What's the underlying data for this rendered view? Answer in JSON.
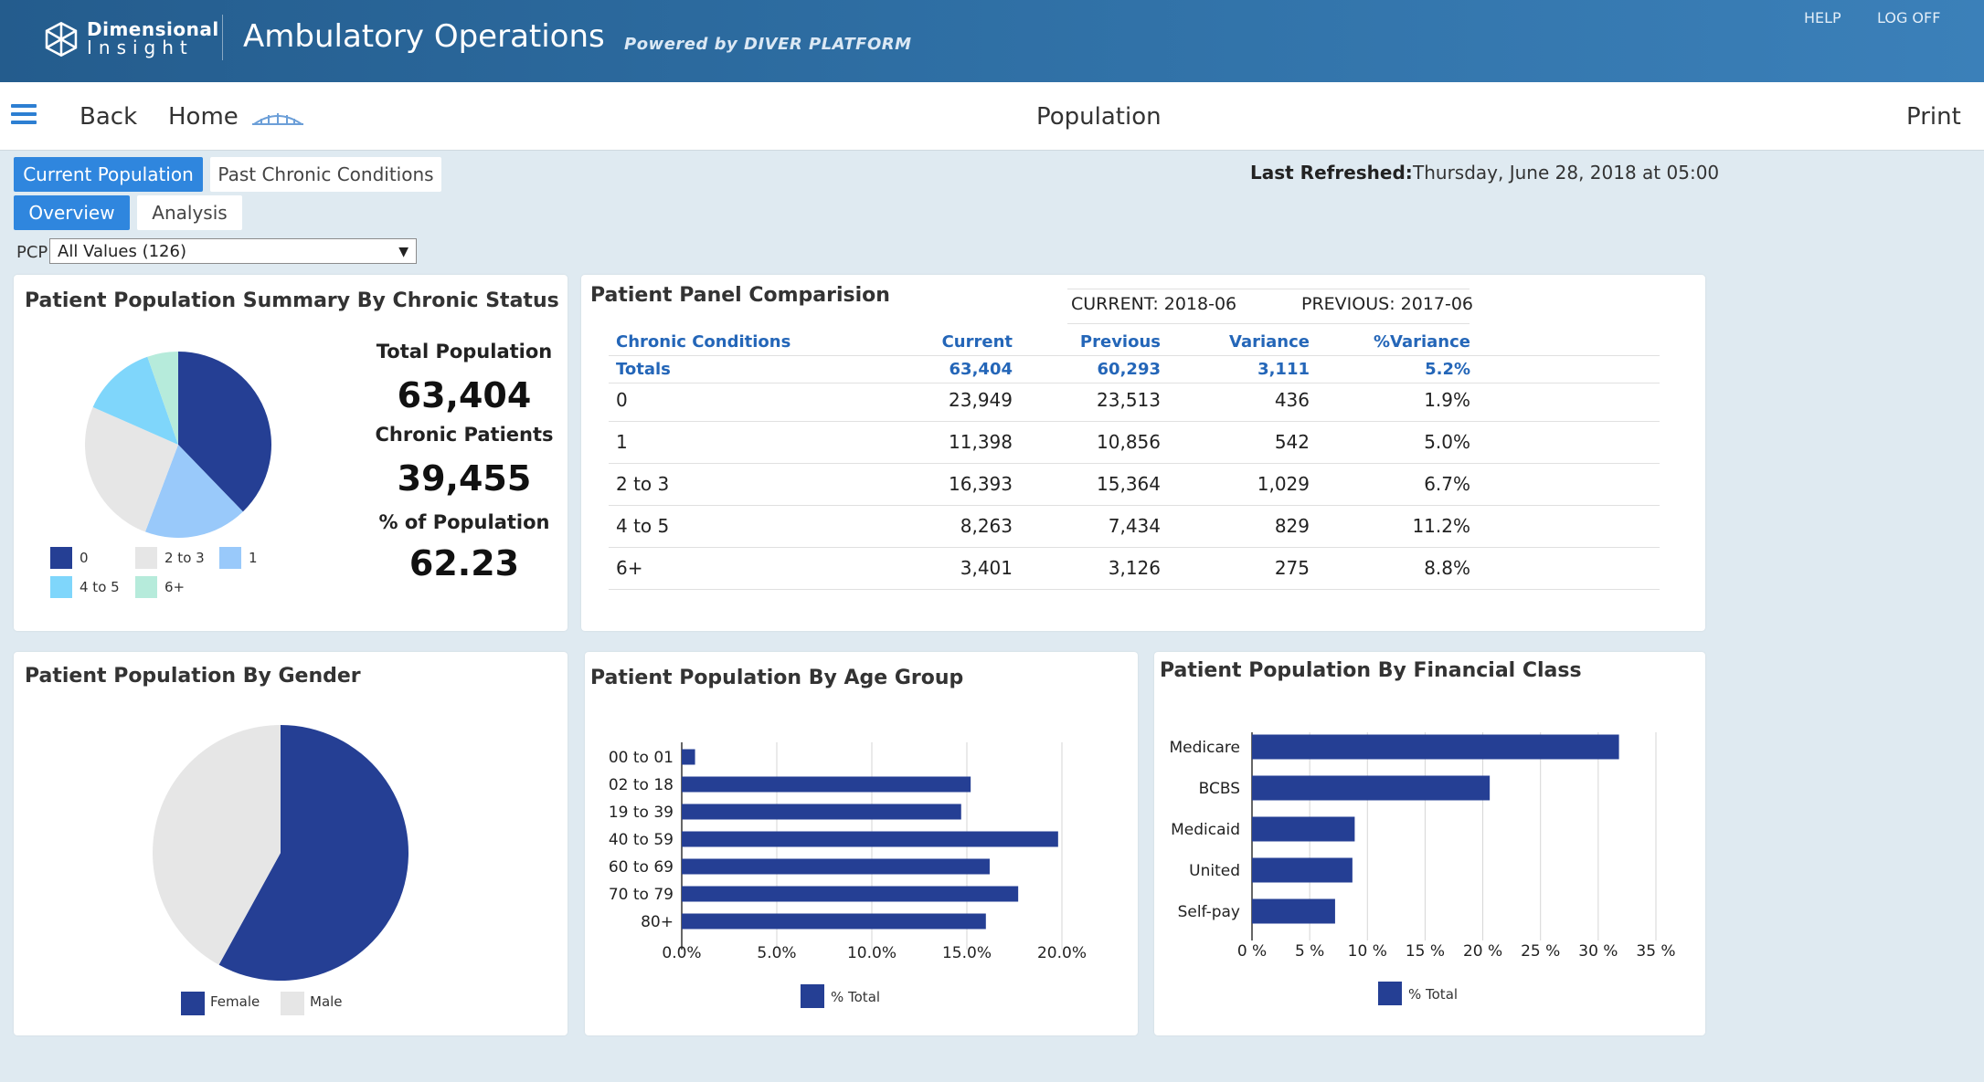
{
  "header": {
    "brand_line1": "Dimensional",
    "brand_line2": "Insight",
    "app_title": "Ambulatory Operations",
    "powered_by": "Powered by DIVER PLATFORM",
    "help": "HELP",
    "log_off": "LOG OFF",
    "bg_color": "#2e6ea3"
  },
  "nav": {
    "back": "Back",
    "home": "Home",
    "page_title": "Population",
    "print": "Print"
  },
  "tabs": {
    "top": [
      {
        "label": "Current Population",
        "active": true
      },
      {
        "label": "Past Chronic Conditions",
        "active": false
      }
    ],
    "sub": [
      {
        "label": "Overview",
        "active": true
      },
      {
        "label": "Analysis",
        "active": false
      }
    ]
  },
  "refresh": {
    "label": "Last Refreshed:",
    "value": "Thursday, June 28, 2018 at 05:00"
  },
  "filter": {
    "label": "PCP",
    "selected": "All Values (126)"
  },
  "summary": {
    "title": "Patient Population Summary By Chronic Status",
    "total_label": "Total Population",
    "total_value": "63,404",
    "chronic_label": "Chronic Patients",
    "chronic_value": "39,455",
    "pct_label": "% of Population",
    "pct_value": "62.23",
    "legend": [
      "0",
      "2 to 3",
      "1",
      "4 to 5",
      "6+"
    ]
  },
  "comparison": {
    "title": "Patient Panel Comparision",
    "current_label": "CURRENT: 2018-06",
    "previous_label": "PREVIOUS: 2017-06",
    "columns": [
      "Chronic Conditions",
      "Current",
      "Previous",
      "Variance",
      "%Variance"
    ],
    "totals": [
      "Totals",
      "63,404",
      "60,293",
      "3,111",
      "5.2%"
    ],
    "rows": [
      [
        "0",
        "23,949",
        "23,513",
        "436",
        "1.9%"
      ],
      [
        "1",
        "11,398",
        "10,856",
        "542",
        "5.0%"
      ],
      [
        "2 to 3",
        "16,393",
        "15,364",
        "1,029",
        "6.7%"
      ],
      [
        "4 to 5",
        "8,263",
        "7,434",
        "829",
        "11.2%"
      ],
      [
        "6+",
        "3,401",
        "3,126",
        "275",
        "8.8%"
      ]
    ]
  },
  "gender": {
    "title": "Patient Population By Gender",
    "legend": [
      "Female",
      "Male"
    ]
  },
  "age": {
    "title": "Patient Population By Age Group",
    "legend": "% Total"
  },
  "financial": {
    "title": "Patient Population By Financial Class",
    "legend": "% Total"
  },
  "colors": {
    "navy": "#253f94",
    "light_gray": "#e6e6e6",
    "light_blue": "#99c9fa",
    "cyan": "#7fd6fb",
    "mint": "#b6ebdb",
    "accent": "#2f86de"
  },
  "chart_data": [
    {
      "type": "pie",
      "title": "Patient Population Summary By Chronic Status",
      "categories": [
        "0",
        "1",
        "2 to 3",
        "4 to 5",
        "6+"
      ],
      "values": [
        23949,
        11398,
        16393,
        8263,
        3401
      ],
      "colors": [
        "#253f94",
        "#99c9fa",
        "#e6e6e6",
        "#7fd6fb",
        "#b6ebdb"
      ],
      "legend": "bottom"
    },
    {
      "type": "pie",
      "title": "Patient Population By Gender",
      "categories": [
        "Female",
        "Male"
      ],
      "values": [
        58,
        42
      ],
      "colors": [
        "#253f94",
        "#e6e6e6"
      ],
      "legend": "bottom"
    },
    {
      "type": "bar",
      "orientation": "horizontal",
      "title": "Patient Population By Age Group",
      "categories": [
        "00 to 01",
        "02 to 18",
        "19 to 39",
        "40 to 59",
        "60 to 69",
        "70 to 79",
        "80+"
      ],
      "series": [
        {
          "name": "% Total",
          "values": [
            0.7,
            15.2,
            14.7,
            19.8,
            16.2,
            17.7,
            16.0
          ]
        }
      ],
      "xlim": [
        0,
        20
      ],
      "ticks": [
        "0.0%",
        "5.0%",
        "10.0%",
        "15.0%",
        "20.0%"
      ],
      "grid": true,
      "legend": "bottom"
    },
    {
      "type": "bar",
      "orientation": "horizontal",
      "title": "Patient Population By Financial Class",
      "categories": [
        "Medicare",
        "BCBS",
        "Medicaid",
        "United",
        "Self-pay"
      ],
      "series": [
        {
          "name": "% Total",
          "values": [
            31.8,
            20.6,
            8.9,
            8.7,
            7.2
          ]
        }
      ],
      "xlim": [
        0,
        35
      ],
      "ticks": [
        "0 %",
        "5 %",
        "10 %",
        "15 %",
        "20 %",
        "25 %",
        "30 %",
        "35 %"
      ],
      "grid": true,
      "legend": "bottom"
    }
  ]
}
